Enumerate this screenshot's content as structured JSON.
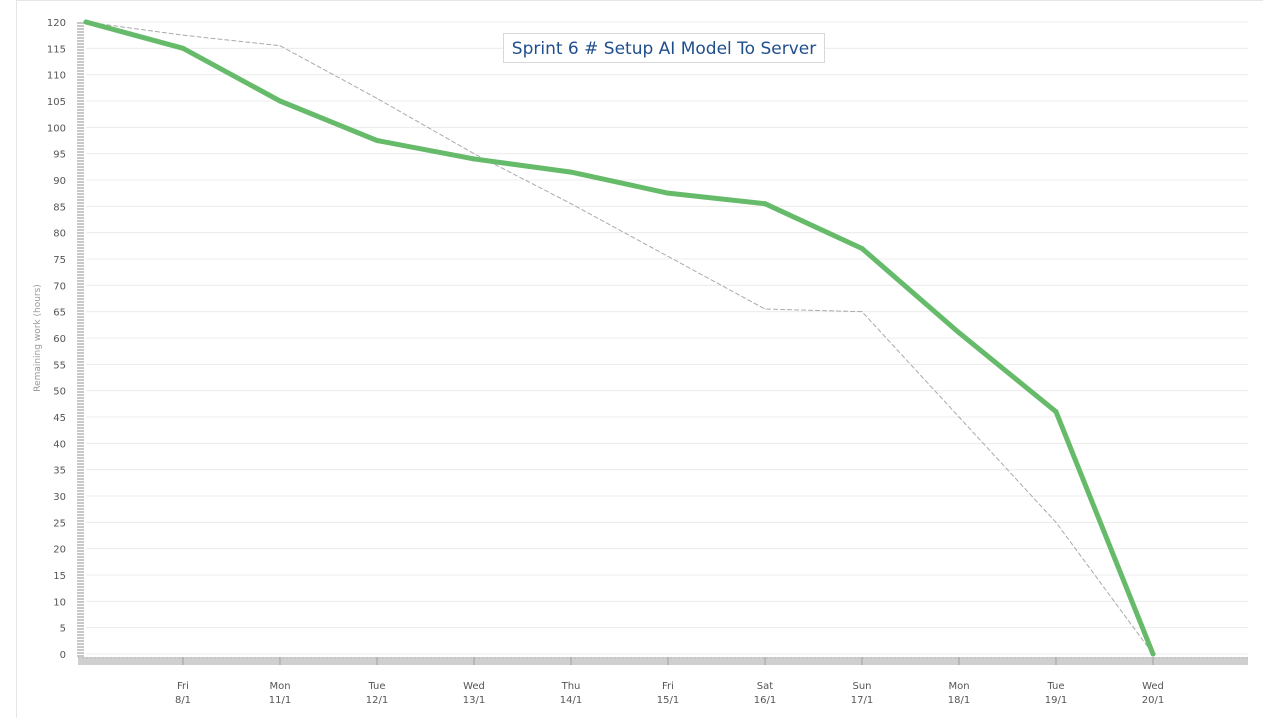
{
  "chart_data": {
    "type": "line",
    "title": "Sprint 6 # Setup AI Model To Server",
    "ylabel": "Remaining work (hours)",
    "xlabel": "",
    "ylim": [
      0,
      120
    ],
    "yticks": [
      0,
      5,
      10,
      15,
      20,
      25,
      30,
      35,
      40,
      45,
      50,
      55,
      60,
      65,
      70,
      75,
      80,
      85,
      90,
      95,
      100,
      105,
      110,
      115,
      120
    ],
    "grid": true,
    "legend": "none",
    "x_ticks": [
      {
        "day": "Fri",
        "date": "8/1"
      },
      {
        "day": "Mon",
        "date": "11/1"
      },
      {
        "day": "Tue",
        "date": "12/1"
      },
      {
        "day": "Wed",
        "date": "13/1"
      },
      {
        "day": "Thu",
        "date": "14/1"
      },
      {
        "day": "Fri",
        "date": "15/1"
      },
      {
        "day": "Sat",
        "date": "16/1"
      },
      {
        "day": "Sun",
        "date": "17/1"
      },
      {
        "day": "Mon",
        "date": "18/1"
      },
      {
        "day": "Tue",
        "date": "19/1"
      },
      {
        "day": "Wed",
        "date": "20/1"
      }
    ],
    "series": [
      {
        "role": "remaining",
        "color": "#66bb6a",
        "style": "solid",
        "values": [
          120,
          115,
          105,
          97.5,
          94,
          91.5,
          87.5,
          85.5,
          77,
          61,
          46,
          0
        ]
      },
      {
        "role": "ideal",
        "color": "#aaaaaa",
        "style": "dashed",
        "values": [
          120,
          117.5,
          115.5,
          105.5,
          95,
          85.5,
          75.5,
          65.5,
          65,
          45,
          25,
          0
        ]
      }
    ]
  }
}
